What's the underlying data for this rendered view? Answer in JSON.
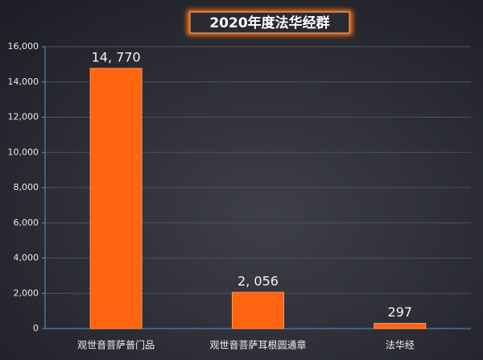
{
  "chart_data": {
    "type": "bar",
    "title": "2020年度法华经群",
    "categories": [
      "观世音菩萨普门品",
      "观世音菩萨耳根圆通章",
      "法华经"
    ],
    "values": [
      14770,
      2056,
      297
    ],
    "value_labels": [
      "14, 770",
      "2, 056",
      "297"
    ],
    "color": "#ff6410",
    "ylim": [
      0,
      16000
    ],
    "yticks": [
      0,
      {
        "value": 2000,
        "label": "2,000"
      },
      {
        "value": 4000,
        "label": "4,000"
      },
      {
        "value": 6000,
        "label": "6,000"
      },
      {
        "value": 8000,
        "label": "8,000"
      },
      {
        "value": 10000,
        "label": "10,000"
      },
      {
        "value": 12000,
        "label": "12,000"
      },
      {
        "value": 14000,
        "label": "14,000"
      },
      {
        "value": 16000,
        "label": "16,000"
      }
    ],
    "grid": true
  }
}
